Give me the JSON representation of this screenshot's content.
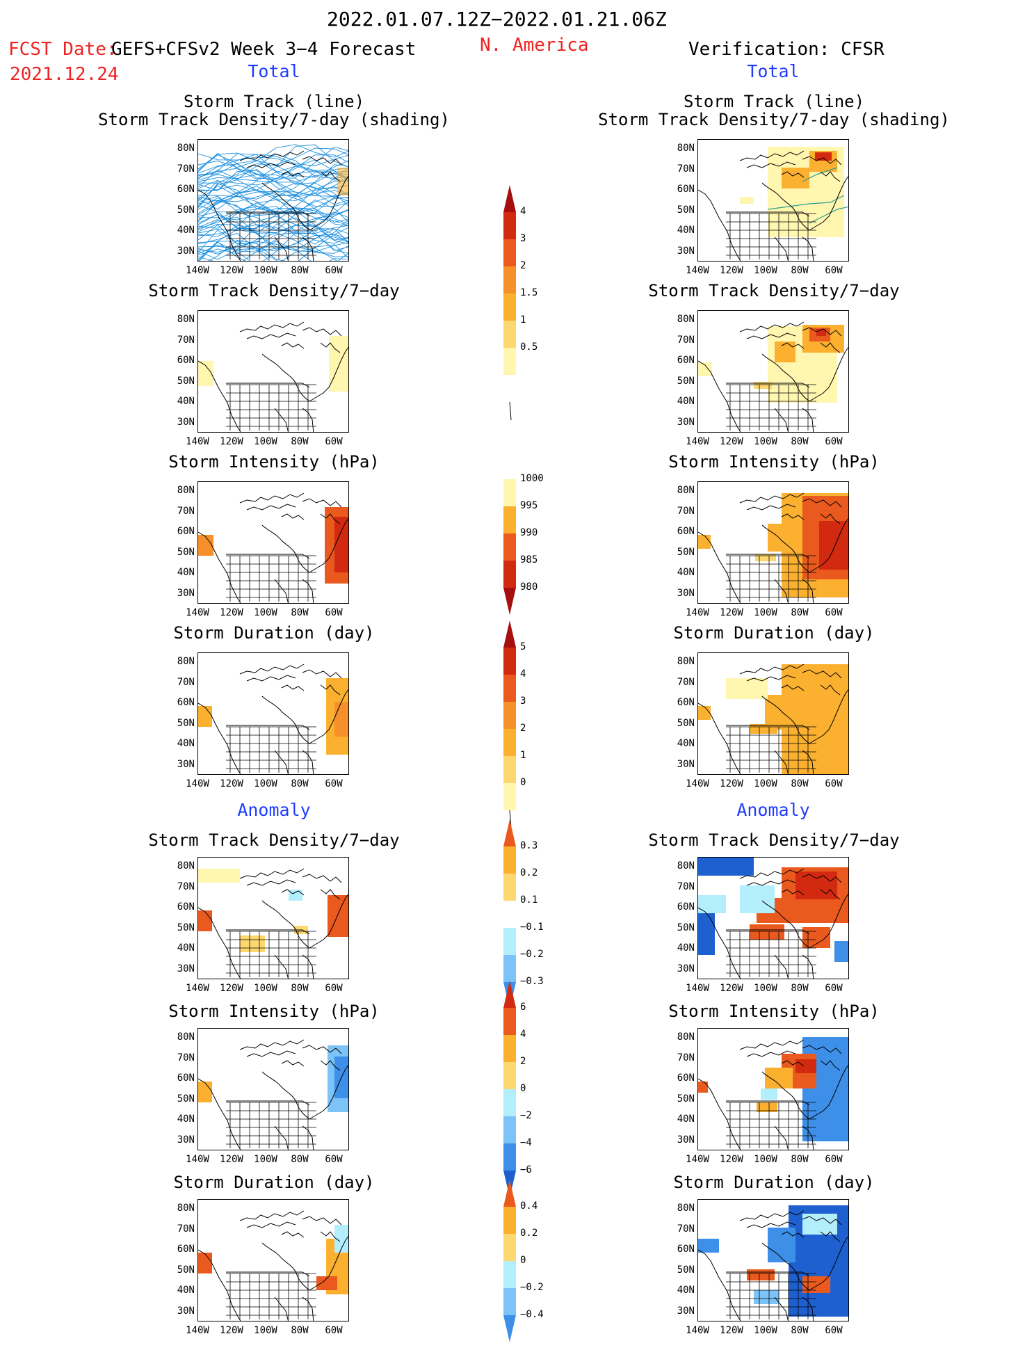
{
  "header": {
    "date_range": "2022.01.07.12Z−2022.01.21.06Z",
    "fcst_label": "FCST Date:",
    "fcst_title": "GEFS+CFSv2 Week 3−4 Forecast",
    "fcst_date": "2021.12.24",
    "region": "N. America",
    "verification": "Verification: CFSR"
  },
  "columns": {
    "left_total": "Total",
    "right_total": "Total",
    "left_anomaly": "Anomaly",
    "right_anomaly": "Anomaly"
  },
  "panel_titles": {
    "track_line": "Storm Track (line)",
    "track_shading": "Storm Track Density/7-day (shading)",
    "density": "Storm Track Density/7−day",
    "intensity": "Storm Intensity (hPa)",
    "duration": "Storm Duration (day)"
  },
  "axes": {
    "lat_labels": [
      "80N",
      "70N",
      "60N",
      "50N",
      "40N",
      "30N"
    ],
    "lon_labels": [
      "140W",
      "120W",
      "100W",
      "80W",
      "60W"
    ]
  },
  "colorbars": {
    "density_total": [
      "4",
      "3",
      "2",
      "1.5",
      "1",
      "0.5"
    ],
    "intensity_total": [
      "1000",
      "995",
      "990",
      "985",
      "980"
    ],
    "duration_total": [
      "5",
      "4",
      "3",
      "2",
      "1",
      "0"
    ],
    "density_anom": [
      "0.3",
      "0.2",
      "0.1",
      "−0.1",
      "−0.2",
      "−0.3"
    ],
    "intensity_anom": [
      "6",
      "4",
      "2",
      "0",
      "−2",
      "−4",
      "−6"
    ],
    "duration_anom": [
      "0.4",
      "0.2",
      "0",
      "−0.2",
      "−0.4"
    ]
  },
  "colors": {
    "ylw1": "#fff6b0",
    "ylw2": "#fdd870",
    "org1": "#fbb030",
    "org2": "#f5902a",
    "red1": "#ea5a1e",
    "red2": "#d22a10",
    "red3": "#a50f0f",
    "blu1": "#b3eefc",
    "blu2": "#7cc3f7",
    "blu3": "#3d8fe8",
    "blu4": "#1e60d0",
    "track": "#1a8fe0"
  }
}
